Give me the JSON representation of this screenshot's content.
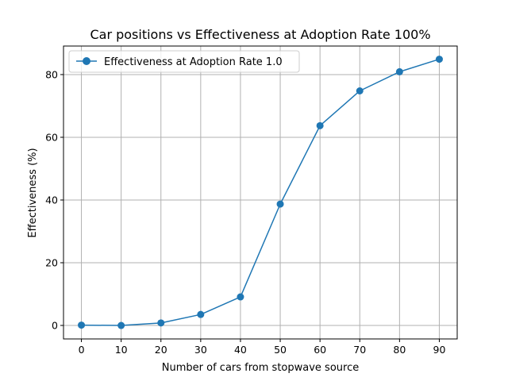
{
  "chart_data": {
    "type": "line",
    "title": "Car positions vs Effectiveness at Adoption Rate 100%",
    "xlabel": "Number of cars from stopwave source",
    "ylabel": "Effectiveness (%)",
    "x": [
      0,
      10,
      20,
      30,
      40,
      50,
      60,
      70,
      80,
      90
    ],
    "series": [
      {
        "name": "Effectiveness at Adoption Rate 1.0",
        "values": [
          0.1,
          0.0,
          0.8,
          3.5,
          9.1,
          38.7,
          63.7,
          74.8,
          80.9,
          84.9
        ],
        "color": "#1f77b4",
        "marker": "circle"
      }
    ],
    "xlim": [
      -4.5,
      94.5
    ],
    "ylim": [
      -4.3,
      89.1
    ],
    "xticks": [
      0,
      10,
      20,
      30,
      40,
      50,
      60,
      70,
      80,
      90
    ],
    "xtick_labels": [
      "0",
      "10",
      "20",
      "30",
      "40",
      "50",
      "60",
      "70",
      "80",
      "90"
    ],
    "yticks": [
      0,
      20,
      40,
      60,
      80
    ],
    "ytick_labels": [
      "0",
      "20",
      "40",
      "60",
      "80"
    ],
    "grid": true,
    "legend_position": "top-left"
  }
}
